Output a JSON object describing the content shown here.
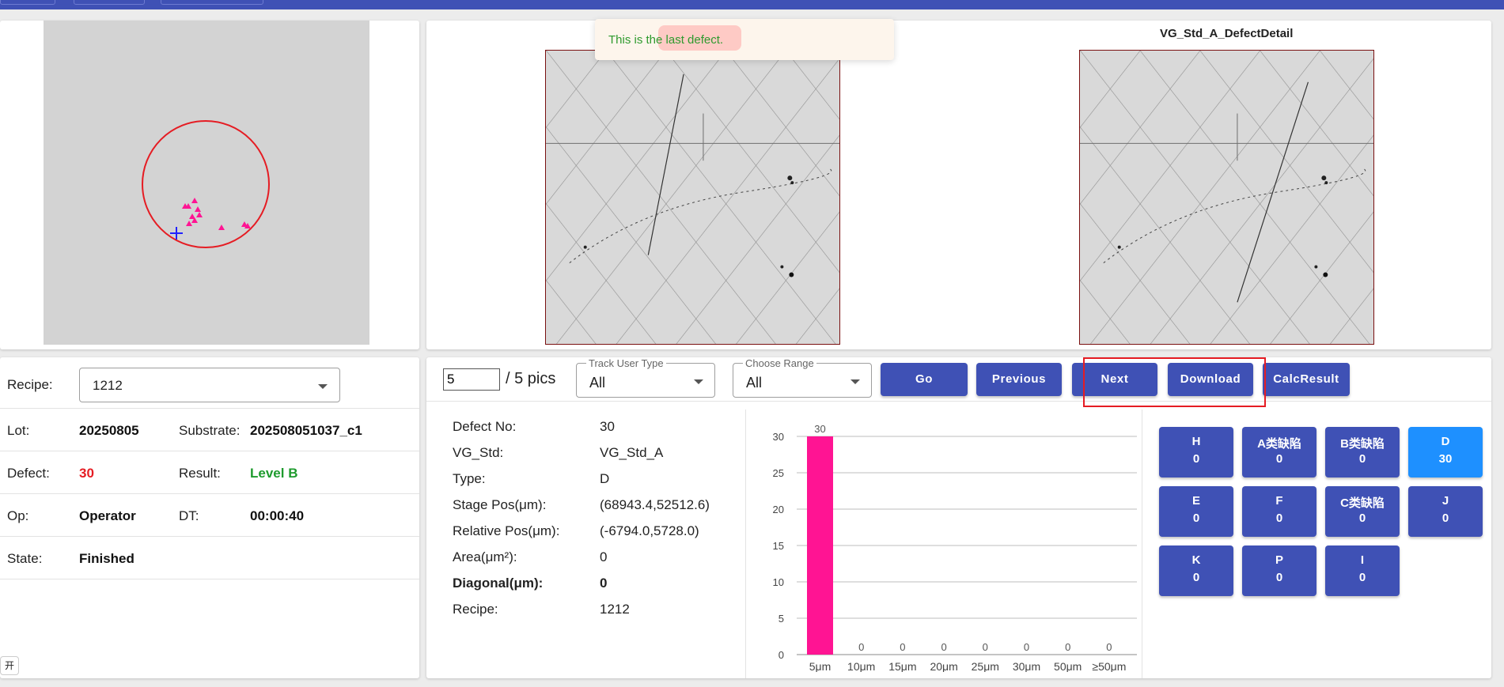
{
  "toast": {
    "message": "This is the last defect."
  },
  "images": {
    "left_title": "",
    "right_title": "VG_Std_A_DefectDetail"
  },
  "info": {
    "recipe_label": "Recipe:",
    "recipe_value": "1212",
    "lot_label": "Lot:",
    "lot_value": "20250805",
    "substrate_label": "Substrate:",
    "substrate_value": "202508051037_c1",
    "defect_label": "Defect:",
    "defect_value": "30",
    "result_label": "Result:",
    "result_value": "Level B",
    "op_label": "Op:",
    "op_value": "Operator",
    "dt_label": "DT:",
    "dt_value": "00:00:40",
    "state_label": "State:",
    "state_value": "Finished",
    "corner_tag": "开始"
  },
  "colors": {
    "primary": "#3f51b5",
    "active_grade": "#1e90ff",
    "defect_red": "#e51c23",
    "result_green": "#1e9b2e",
    "bar": "#ff1493"
  },
  "controls": {
    "page_value": "5",
    "page_total": "/ 5 pics",
    "track_user_type_label": "Track User Type",
    "track_user_type_value": "All",
    "choose_range_label": "Choose Range",
    "choose_range_value": "All",
    "go": "Go",
    "previous": "Previous",
    "next": "Next",
    "download": "Download",
    "calc_result": "CalcResult"
  },
  "detail": [
    {
      "label": "Defect No:",
      "value": "30"
    },
    {
      "label": "VG_Std:",
      "value": "VG_Std_A"
    },
    {
      "label": "Type:",
      "value": "D"
    },
    {
      "label": "Stage Pos(μm):",
      "value": "(68943.4,52512.6)"
    },
    {
      "label": "Relative Pos(μm):",
      "value": "(-6794.0,5728.0)"
    },
    {
      "label": "Area(μm²):",
      "value": "0"
    },
    {
      "label": "Diagonal(μm):",
      "value": "0"
    },
    {
      "label": "Recipe:",
      "value": "1212"
    }
  ],
  "grades": [
    {
      "name": "H",
      "count": "0",
      "active": false
    },
    {
      "name": "A类缺陷",
      "count": "0",
      "active": false
    },
    {
      "name": "B类缺陷",
      "count": "0",
      "active": false
    },
    {
      "name": "D",
      "count": "30",
      "active": true
    },
    {
      "name": "E",
      "count": "0",
      "active": false
    },
    {
      "name": "F",
      "count": "0",
      "active": false
    },
    {
      "name": "C类缺陷",
      "count": "0",
      "active": false
    },
    {
      "name": "J",
      "count": "0",
      "active": false
    },
    {
      "name": "K",
      "count": "0",
      "active": false
    },
    {
      "name": "P",
      "count": "0",
      "active": false
    },
    {
      "name": "I",
      "count": "0",
      "active": false
    }
  ],
  "chart_data": {
    "type": "bar",
    "categories": [
      "5μm",
      "10μm",
      "15μm",
      "20μm",
      "25μm",
      "30μm",
      "50μm",
      "≥50μm"
    ],
    "values": [
      30,
      0,
      0,
      0,
      0,
      0,
      0,
      0
    ],
    "ylim": [
      0,
      30
    ],
    "yticks": [
      0,
      5,
      10,
      15,
      20,
      25,
      30
    ],
    "grid": true,
    "title": "",
    "xlabel": "",
    "ylabel": ""
  }
}
